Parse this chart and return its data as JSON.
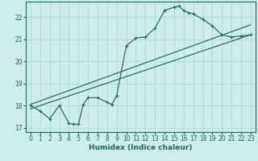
{
  "xlabel": "Humidex (Indice chaleur)",
  "ylabel": "",
  "bg_color": "#ceecea",
  "line_color": "#1a6b5a",
  "grid_color": "#a8d5d0",
  "xlim": [
    -0.5,
    23.5
  ],
  "ylim": [
    16.8,
    22.7
  ],
  "yticks": [
    17,
    18,
    19,
    20,
    21,
    22
  ],
  "xticks": [
    0,
    1,
    2,
    3,
    4,
    5,
    6,
    7,
    8,
    9,
    10,
    11,
    12,
    13,
    14,
    15,
    16,
    17,
    18,
    19,
    20,
    21,
    22,
    23
  ],
  "trend1_x": [
    0,
    23
  ],
  "trend1_y": [
    17.85,
    21.2
  ],
  "trend2_x": [
    0,
    23
  ],
  "trend2_y": [
    18.05,
    21.65
  ],
  "data_x": [
    0,
    1,
    2,
    3,
    4,
    4.5,
    5,
    5.5,
    6,
    7,
    8,
    8.5,
    9,
    10,
    11,
    12,
    13,
    14,
    15,
    15.5,
    16,
    16.5,
    17,
    18,
    19,
    20,
    21,
    22,
    23
  ],
  "data_y": [
    18.0,
    17.75,
    17.4,
    18.0,
    17.2,
    17.15,
    17.15,
    18.05,
    18.35,
    18.35,
    18.15,
    18.05,
    18.45,
    20.7,
    21.05,
    21.1,
    21.5,
    22.3,
    22.45,
    22.5,
    22.3,
    22.2,
    22.15,
    21.9,
    21.6,
    21.2,
    21.1,
    21.15,
    21.2
  ]
}
